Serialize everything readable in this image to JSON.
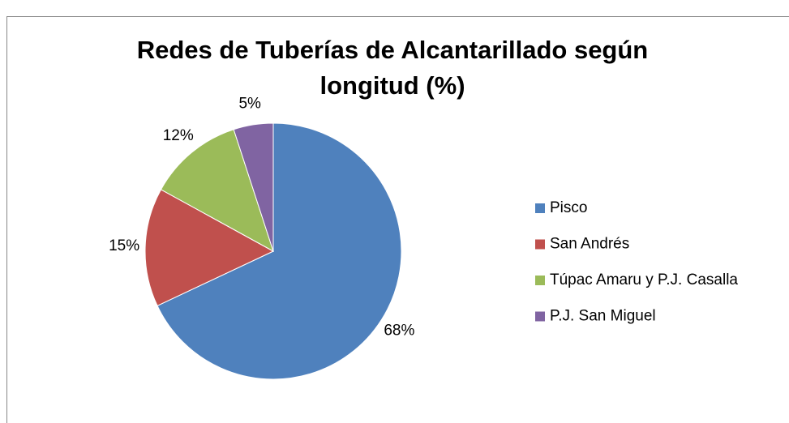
{
  "chart_data": {
    "type": "pie",
    "title": "Redes de Tuberías de Alcantarillado según longitud (%)",
    "categories": [
      "Pisco",
      "San Andrés",
      "Túpac Amaru y P.J. Casalla",
      "P.J. San Miguel"
    ],
    "values": [
      68,
      15,
      12,
      5
    ],
    "value_labels": [
      "68%",
      "15%",
      "12%",
      "5%"
    ],
    "colors": [
      "#4f81bd",
      "#c0504d",
      "#9bbb59",
      "#8064a2"
    ],
    "legend": "right"
  }
}
